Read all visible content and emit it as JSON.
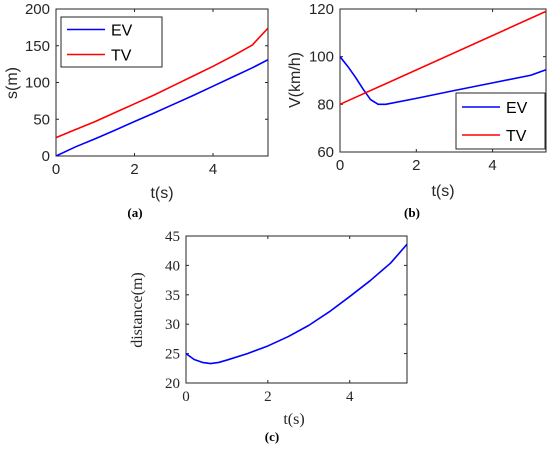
{
  "chart_data": [
    {
      "id": "a",
      "type": "line",
      "caption": "(a)",
      "xlabel": "t(s)",
      "ylabel": "s(m)",
      "xlim": [
        0,
        5.4
      ],
      "ylim": [
        0,
        200
      ],
      "xticks": [
        0,
        2,
        4
      ],
      "yticks": [
        0,
        50,
        100,
        150,
        200
      ],
      "legend_position": "top-left",
      "series": [
        {
          "name": "EV",
          "color": "#0000ff",
          "x": [
            0,
            0.5,
            1,
            1.5,
            2,
            2.5,
            3,
            3.5,
            4,
            4.5,
            5,
            5.4
          ],
          "y": [
            0,
            12.5,
            23.5,
            35,
            47,
            58.5,
            70.5,
            82.5,
            95,
            107.5,
            120,
            131
          ]
        },
        {
          "name": "TV",
          "color": "#ff0000",
          "x": [
            0,
            0.5,
            1,
            1.5,
            2,
            2.5,
            3,
            3.5,
            4,
            4.5,
            5,
            5.4
          ],
          "y": [
            25,
            36,
            47,
            59,
            71,
            83,
            96,
            109,
            122,
            136,
            151,
            174
          ]
        }
      ]
    },
    {
      "id": "b",
      "type": "line",
      "caption": "(b)",
      "xlabel": "t(s)",
      "ylabel": "V(km/h)",
      "xlim": [
        0,
        5.4
      ],
      "ylim": [
        60,
        120
      ],
      "xticks": [
        0,
        2,
        4
      ],
      "yticks": [
        60,
        80,
        100,
        120
      ],
      "legend_position": "bottom-right",
      "series": [
        {
          "name": "EV",
          "color": "#0000ff",
          "x": [
            0,
            0.2,
            0.4,
            0.6,
            0.8,
            1.0,
            1.2,
            2,
            3,
            4,
            5,
            5.4
          ],
          "y": [
            100,
            96,
            91.5,
            86.5,
            82,
            80,
            80,
            82.5,
            85.8,
            89,
            92.2,
            94.5
          ]
        },
        {
          "name": "TV",
          "color": "#ff0000",
          "x": [
            0,
            5.4
          ],
          "y": [
            80,
            119
          ]
        }
      ]
    },
    {
      "id": "c",
      "type": "line",
      "caption": "(c)",
      "xlabel": "t(s)",
      "ylabel": "distance(m)",
      "xlim": [
        0,
        5.4
      ],
      "ylim": [
        20,
        45
      ],
      "xticks": [
        0,
        2,
        4
      ],
      "yticks": [
        20,
        25,
        30,
        35,
        40,
        45
      ],
      "series": [
        {
          "name": "",
          "color": "#0000ff",
          "x": [
            0,
            0.2,
            0.4,
            0.6,
            0.8,
            1,
            1.5,
            2,
            2.5,
            3,
            3.5,
            4,
            4.5,
            5,
            5.4
          ],
          "y": [
            25,
            24,
            23.5,
            23.3,
            23.5,
            23.9,
            25,
            26.3,
            27.9,
            29.8,
            32.1,
            34.7,
            37.4,
            40.4,
            43.6
          ]
        }
      ]
    }
  ]
}
